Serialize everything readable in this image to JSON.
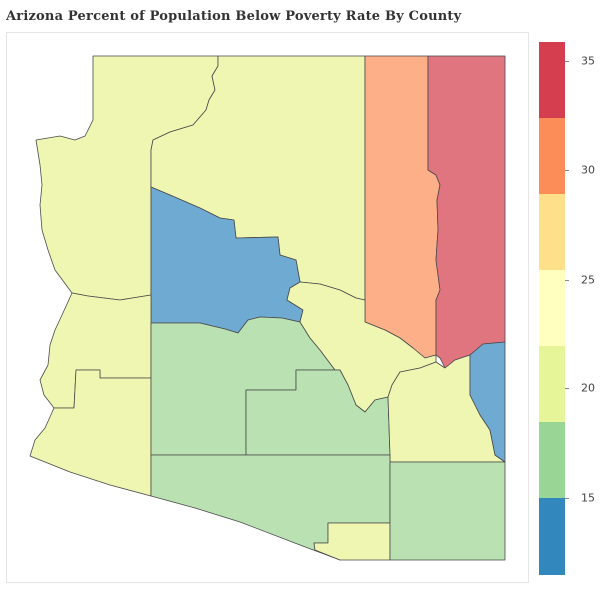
{
  "title": "Arizona Percent of Population Below Poverty Rate By County",
  "legend": {
    "ticks": [
      "15",
      "20",
      "25",
      "30",
      "35"
    ],
    "colors": [
      "#3288bd",
      "#99d594",
      "#e6f598",
      "#ffffbf",
      "#fee08b",
      "#fc8d59",
      "#d53e4f"
    ]
  },
  "counties": [
    {
      "key": "mohave",
      "color": "#eef6b2"
    },
    {
      "key": "coconino",
      "color": "#eef6b2"
    },
    {
      "key": "navajo",
      "color": "#fdaf88"
    },
    {
      "key": "apache",
      "color": "#e07580"
    },
    {
      "key": "yavapai",
      "color": "#6eaad2"
    },
    {
      "key": "la-paz",
      "color": "#eef6b2"
    },
    {
      "key": "yuma",
      "color": "#eef6b2"
    },
    {
      "key": "maricopa",
      "color": "#b9e1b2"
    },
    {
      "key": "gila",
      "color": "#eef6b2"
    },
    {
      "key": "pinal",
      "color": "#b9e1b2"
    },
    {
      "key": "graham",
      "color": "#eef6b2"
    },
    {
      "key": "greenlee",
      "color": "#6eaad2"
    },
    {
      "key": "pima",
      "color": "#b9e1b2"
    },
    {
      "key": "santa-cruz",
      "color": "#eef6b2"
    },
    {
      "key": "cochise",
      "color": "#b9e1b2"
    }
  ]
}
